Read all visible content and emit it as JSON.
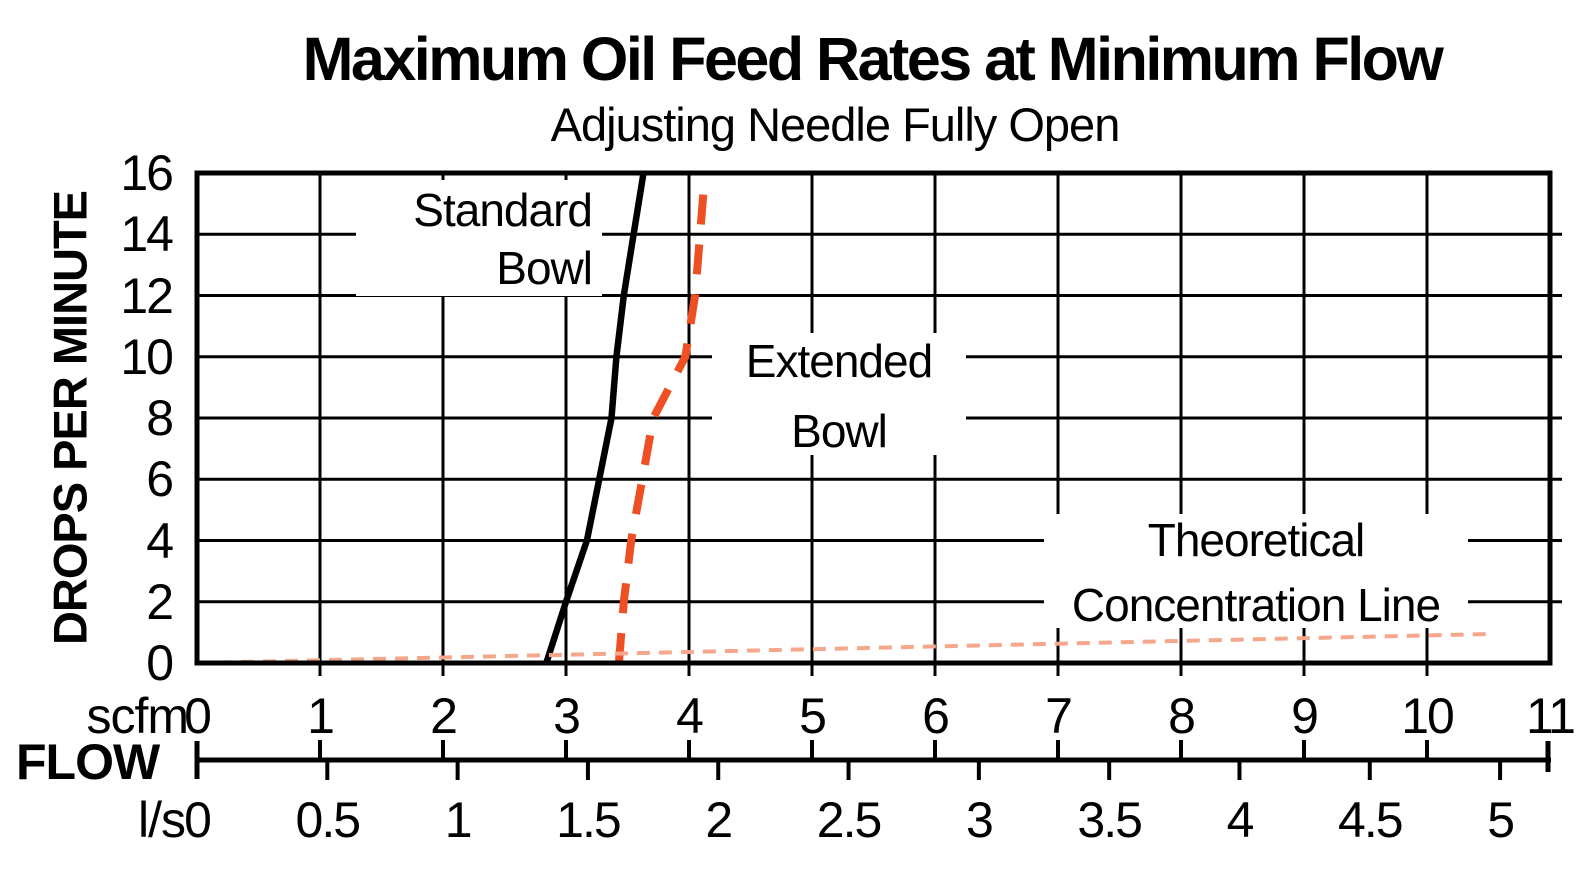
{
  "title": "Maximum Oil Feed Rates at Minimum Flow",
  "subtitle": "Adjusting Needle Fully Open",
  "y_axis": {
    "label": "DROPS PER MINUTE",
    "ticks": [
      "16",
      "14",
      "12",
      "10",
      "8",
      "6",
      "4",
      "2",
      "0"
    ]
  },
  "x_axis": {
    "scfm_unit": "scfm",
    "scfm_ticks": [
      "0",
      "1",
      "2",
      "3",
      "4",
      "5",
      "6",
      "7",
      "8",
      "9",
      "10",
      "11"
    ],
    "flow_label": "FLOW",
    "ls_unit": "l/s",
    "ls_ticks": [
      "0",
      "0.5",
      "1",
      "1.5",
      "2",
      "2.5",
      "3",
      "3.5",
      "4",
      "4.5",
      "5"
    ]
  },
  "series_labels": {
    "standard_line1": "Standard",
    "standard_line2": "Bowl",
    "extended_line1": "Extended",
    "extended_line2": "Bowl",
    "theoretical_line1": "Theoretical",
    "theoretical_line2": "Concentration Line"
  },
  "colors": {
    "ink": "#000000",
    "extended_bowl_line": "#ef5023",
    "theoretical_line": "#f5a78c"
  },
  "chart_data": {
    "type": "line",
    "title": "Maximum Oil Feed Rates at Minimum Flow",
    "subtitle": "Adjusting Needle Fully Open",
    "ylabel": "DROPS PER MINUTE",
    "xlabel": "FLOW",
    "x_axes": [
      {
        "unit": "scfm",
        "range": [
          0,
          11
        ],
        "ticks": [
          0,
          1,
          2,
          3,
          4,
          5,
          6,
          7,
          8,
          9,
          10,
          11
        ]
      },
      {
        "unit": "l/s",
        "ticks": [
          0,
          0.5,
          1,
          1.5,
          2,
          2.5,
          3,
          3.5,
          4,
          4.5,
          5
        ],
        "scfm_per_ls": 2.11888
      }
    ],
    "ylim": [
      0,
      16
    ],
    "yticks": [
      0,
      2,
      4,
      6,
      8,
      10,
      12,
      14,
      16
    ],
    "grid": true,
    "series": [
      {
        "name": "Standard Bowl",
        "style": "solid",
        "x_scfm": [
          2.84,
          3.0,
          3.17,
          3.27,
          3.37,
          3.41,
          3.47,
          3.55,
          3.63
        ],
        "y_drops": [
          0,
          2,
          4,
          6,
          8,
          10,
          12,
          14,
          16
        ]
      },
      {
        "name": "Extended Bowl",
        "style": "dashed",
        "x_scfm": [
          3.43,
          3.47,
          3.53,
          3.62,
          3.71,
          3.97,
          4.05,
          4.09,
          4.13
        ],
        "y_drops": [
          0,
          2,
          4,
          6,
          8,
          10,
          12,
          14,
          16
        ]
      },
      {
        "name": "Theoretical Concentration Line",
        "style": "fine-dashed",
        "x_scfm": [
          0,
          10.55
        ],
        "y_drops": [
          0,
          0.95
        ]
      }
    ]
  }
}
